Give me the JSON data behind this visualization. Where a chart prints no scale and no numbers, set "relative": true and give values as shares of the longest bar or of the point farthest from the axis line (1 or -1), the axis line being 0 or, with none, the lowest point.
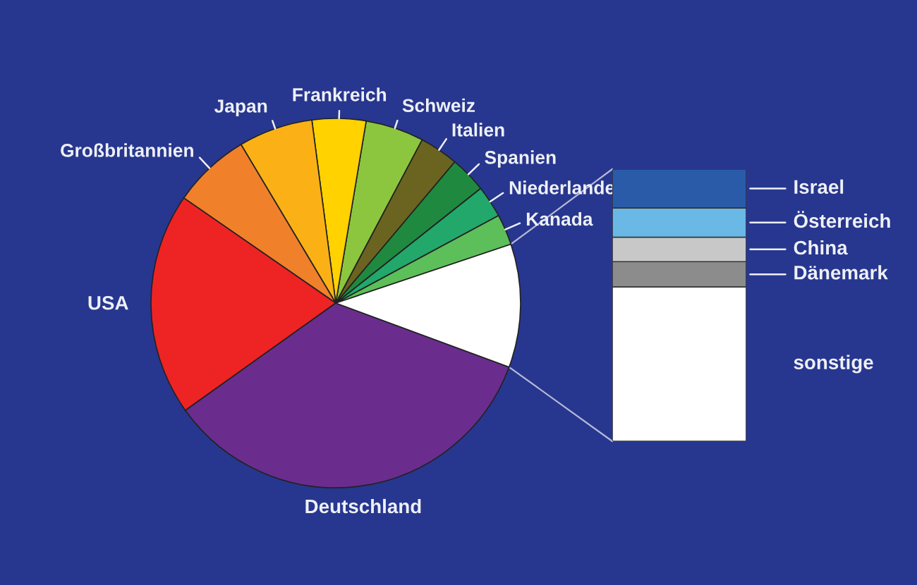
{
  "chart_data": [
    {
      "type": "pie",
      "categories": [
        "Kanada",
        "Niederlande",
        "Spanien",
        "Italien",
        "Schweiz",
        "Frankreich",
        "Japan",
        "Großbritannien",
        "USA",
        "Deutschland",
        null
      ],
      "values": [
        2.7,
        2.8,
        3.2,
        3.4,
        5.1,
        4.7,
        6.5,
        6.8,
        19.5,
        34.5,
        10.8
      ],
      "colors": [
        "#5cbf5a",
        "#22a86a",
        "#1f8a3f",
        "#6b6420",
        "#8cc63f",
        "#ffd200",
        "#fbb116",
        "#f0802a",
        "#ee2324",
        "#6a2d8e",
        "#ffffff"
      ]
    },
    {
      "type": "bar",
      "stacked": true,
      "relative": true,
      "categories": [
        null
      ],
      "series": [
        {
          "name": "sonstige",
          "color": "#ffffff",
          "values": [
            0.567
          ]
        },
        {
          "name": "Dänemark",
          "color": "#8c8c8c",
          "values": [
            0.093
          ]
        },
        {
          "name": "China",
          "color": "#c8c8c8",
          "values": [
            0.09
          ]
        },
        {
          "name": "Österreich",
          "color": "#6ab8e6",
          "values": [
            0.107
          ]
        },
        {
          "name": "Israel",
          "color": "#2a5ba8",
          "values": [
            0.143
          ]
        }
      ]
    }
  ]
}
